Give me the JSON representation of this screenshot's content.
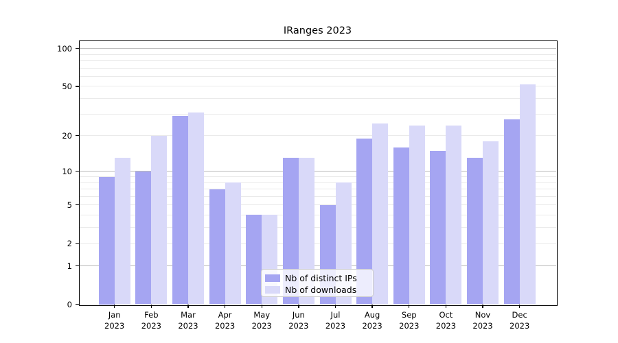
{
  "chart_data": {
    "type": "bar",
    "title": "IRanges 2023",
    "categories": [
      "Jan",
      "Feb",
      "Mar",
      "Apr",
      "May",
      "Jun",
      "Jul",
      "Aug",
      "Sep",
      "Oct",
      "Nov",
      "Dec"
    ],
    "category_year": "2023",
    "series": [
      {
        "name": "Nb of distinct IPs",
        "color": "#a5a5f2",
        "values": [
          9,
          10,
          29,
          7,
          4,
          13,
          5,
          19,
          16,
          15,
          13,
          27
        ]
      },
      {
        "name": "Nb of downloads",
        "color": "#d9d9f9",
        "values": [
          13,
          20,
          31,
          8,
          4,
          13,
          8,
          25,
          24,
          24,
          18,
          52
        ]
      }
    ],
    "y_scale": "log10(1+y)",
    "y_ticks": [
      0,
      1,
      2,
      5,
      10,
      20,
      50,
      100
    ],
    "y_major_gridlines": [
      1,
      10,
      100
    ],
    "y_minor_gridlines": [
      2,
      3,
      4,
      5,
      6,
      7,
      8,
      9,
      20,
      30,
      40,
      50,
      60,
      70,
      80,
      90
    ],
    "ylim": [
      0,
      116
    ],
    "grid": "both",
    "legend_position": "lower-center-inside",
    "colors": {
      "major_grid": "#b9b9b9",
      "minor_grid": "#eaeaea",
      "spine": "#000000",
      "background": "#ffffff"
    }
  }
}
